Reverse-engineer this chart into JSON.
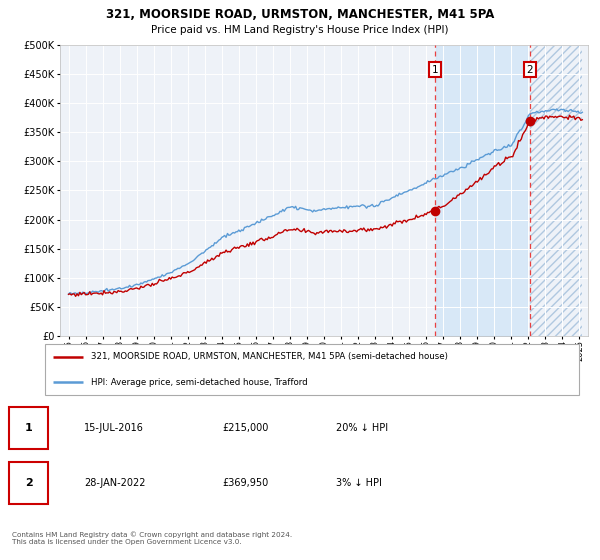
{
  "title": "321, MOORSIDE ROAD, URMSTON, MANCHESTER, M41 5PA",
  "subtitle": "Price paid vs. HM Land Registry's House Price Index (HPI)",
  "legend_line1": "321, MOORSIDE ROAD, URMSTON, MANCHESTER, M41 5PA (semi-detached house)",
  "legend_line2": "HPI: Average price, semi-detached house, Trafford",
  "footer": "Contains HM Land Registry data © Crown copyright and database right 2024.\nThis data is licensed under the Open Government Licence v3.0.",
  "annotation1_label": "1",
  "annotation1_date": "15-JUL-2016",
  "annotation1_price": "£215,000",
  "annotation1_hpi": "20% ↓ HPI",
  "annotation2_label": "2",
  "annotation2_date": "28-JAN-2022",
  "annotation2_price": "£369,950",
  "annotation2_hpi": "3% ↓ HPI",
  "sale1_x": 2016.54,
  "sale1_y": 215000,
  "sale2_x": 2022.08,
  "sale2_y": 369950,
  "hpi_color": "#5b9bd5",
  "price_color": "#c00000",
  "vline_color": "#e84040",
  "background_color": "#ffffff",
  "plot_bg_color": "#eef2f8",
  "shade_between_color": "#d0e4f7",
  "ylim": [
    0,
    500000
  ],
  "xlim": [
    1994.5,
    2025.5
  ],
  "yticks": [
    0,
    50000,
    100000,
    150000,
    200000,
    250000,
    300000,
    350000,
    400000,
    450000,
    500000
  ],
  "xticks": [
    1995,
    1996,
    1997,
    1998,
    1999,
    2000,
    2001,
    2002,
    2003,
    2004,
    2005,
    2006,
    2007,
    2008,
    2009,
    2010,
    2011,
    2012,
    2013,
    2014,
    2015,
    2016,
    2017,
    2018,
    2019,
    2020,
    2021,
    2022,
    2023,
    2024,
    2025
  ]
}
